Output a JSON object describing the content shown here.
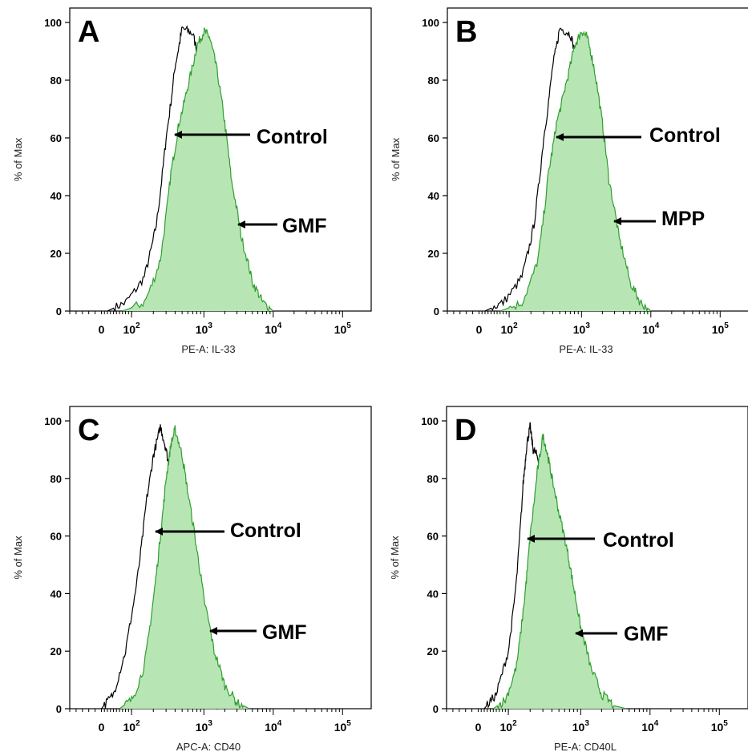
{
  "chart_data": [
    {
      "type": "area",
      "panel_label": "A",
      "xlabel": "PE-A: IL-33",
      "ylabel": "% of Max",
      "x_scale": "biexponential",
      "x_ticks": [
        "0",
        "10^2",
        "10^3",
        "10^4",
        "10^5"
      ],
      "ylim": [
        0,
        100
      ],
      "y_ticks": [
        0,
        20,
        40,
        60,
        80,
        100
      ],
      "series": [
        {
          "role": "control",
          "color": "#000000",
          "filled": false,
          "x": [
            20,
            80,
            150,
            220,
            300,
            400,
            500,
            700,
            900,
            1100,
            1400,
            1800,
            2400,
            3200,
            4500,
            6500,
            9000
          ],
          "y": [
            0,
            3,
            12,
            30,
            60,
            85,
            98,
            96,
            85,
            70,
            48,
            30,
            18,
            8,
            3,
            1,
            0
          ]
        },
        {
          "role": "treated",
          "color": "#2f9e2f",
          "fill": "#b7e6b4",
          "filled": true,
          "x": [
            70,
            150,
            250,
            350,
            450,
            600,
            800,
            1000,
            1200,
            1500,
            2000,
            2500,
            3500,
            5000,
            7000,
            10000
          ],
          "y": [
            0,
            3,
            18,
            48,
            65,
            78,
            92,
            97,
            95,
            85,
            65,
            45,
            25,
            10,
            3,
            0
          ]
        }
      ],
      "annotations": [
        {
          "text": "Control",
          "target_x": 330,
          "target_y": 61
        },
        {
          "text": "GMF",
          "target_x": 2300,
          "target_y": 30
        }
      ]
    },
    {
      "type": "area",
      "panel_label": "B",
      "xlabel": "PE-A: IL-33",
      "ylabel": "% of Max",
      "x_scale": "biexponential",
      "x_ticks": [
        "0",
        "10^2",
        "10^3",
        "10^4",
        "10^5"
      ],
      "ylim": [
        0,
        100
      ],
      "y_ticks": [
        0,
        20,
        40,
        60,
        80,
        100
      ],
      "series": [
        {
          "role": "control",
          "color": "#000000",
          "filled": false,
          "x": [
            20,
            80,
            150,
            220,
            300,
            400,
            500,
            700,
            900,
            1100,
            1400,
            1800,
            2400,
            3200,
            4500,
            6500,
            9000
          ],
          "y": [
            0,
            3,
            12,
            30,
            60,
            85,
            98,
            96,
            85,
            70,
            48,
            30,
            18,
            8,
            3,
            1,
            0
          ]
        },
        {
          "role": "treated",
          "color": "#2f9e2f",
          "fill": "#b7e6b4",
          "filled": true,
          "x": [
            70,
            150,
            250,
            350,
            450,
            600,
            800,
            1000,
            1200,
            1500,
            2000,
            2500,
            3500,
            5000,
            7000,
            10000
          ],
          "y": [
            0,
            3,
            18,
            48,
            65,
            78,
            92,
            97,
            95,
            85,
            65,
            45,
            25,
            10,
            3,
            0
          ]
        }
      ],
      "annotations": [
        {
          "text": "Control",
          "target_x": 330,
          "target_y": 60
        },
        {
          "text": "MPP",
          "target_x": 2300,
          "target_y": 31
        }
      ]
    },
    {
      "type": "area",
      "panel_label": "C",
      "xlabel": "APC-A: CD40",
      "ylabel": "% of Max",
      "x_scale": "biexponential",
      "x_ticks": [
        "0",
        "10^2",
        "10^3",
        "10^4",
        "10^5"
      ],
      "ylim": [
        0,
        100
      ],
      "y_ticks": [
        0,
        20,
        40,
        60,
        80,
        100
      ],
      "series": [
        {
          "role": "control",
          "color": "#000000",
          "filled": false,
          "x": [
            0,
            40,
            80,
            120,
            160,
            200,
            250,
            300,
            350,
            400,
            500,
            600,
            800,
            1000,
            1300,
            1800
          ],
          "y": [
            0,
            5,
            20,
            45,
            72,
            88,
            98,
            90,
            80,
            68,
            50,
            35,
            20,
            10,
            3,
            0
          ]
        },
        {
          "role": "treated",
          "color": "#2f9e2f",
          "fill": "#b7e6b4",
          "filled": true,
          "x": [
            60,
            100,
            150,
            200,
            250,
            300,
            350,
            400,
            500,
            600,
            800,
            1000,
            1400,
            2000,
            3000,
            4500
          ],
          "y": [
            0,
            3,
            15,
            38,
            60,
            80,
            92,
            97,
            88,
            75,
            55,
            38,
            20,
            8,
            2,
            0
          ]
        }
      ],
      "annotations": [
        {
          "text": "Control",
          "target_x": 230,
          "target_y": 61
        },
        {
          "text": "GMF",
          "target_x": 1100,
          "target_y": 27
        }
      ]
    },
    {
      "type": "area",
      "panel_label": "D",
      "xlabel": "PE-A: CD40L",
      "ylabel": "% of Max",
      "x_scale": "biexponential",
      "x_ticks": [
        "0",
        "10^2",
        "10^3",
        "10^4",
        "10^5"
      ],
      "ylim": [
        0,
        100
      ],
      "y_ticks": [
        0,
        20,
        40,
        60,
        80,
        100
      ],
      "series": [
        {
          "role": "control",
          "color": "#000000",
          "filled": false,
          "x": [
            20,
            60,
            100,
            130,
            160,
            180,
            200,
            220,
            250,
            300,
            350,
            400,
            500,
            650,
            850,
            1200,
            1800
          ],
          "y": [
            0,
            5,
            20,
            45,
            78,
            92,
            98,
            90,
            88,
            80,
            68,
            55,
            38,
            22,
            10,
            3,
            0
          ]
        },
        {
          "role": "treated",
          "color": "#2f9e2f",
          "fill": "#b7e6b4",
          "filled": true,
          "x": [
            50,
            90,
            130,
            170,
            200,
            250,
            300,
            350,
            400,
            500,
            650,
            800,
            1000,
            1400,
            2000,
            3000,
            4500
          ],
          "y": [
            0,
            3,
            15,
            40,
            60,
            82,
            95,
            88,
            80,
            68,
            55,
            42,
            28,
            14,
            5,
            1,
            0
          ]
        }
      ],
      "annotations": [
        {
          "text": "Control",
          "target_x": 180,
          "target_y": 58
        },
        {
          "text": "GMF",
          "target_x": 850,
          "target_y": 26
        }
      ]
    }
  ]
}
